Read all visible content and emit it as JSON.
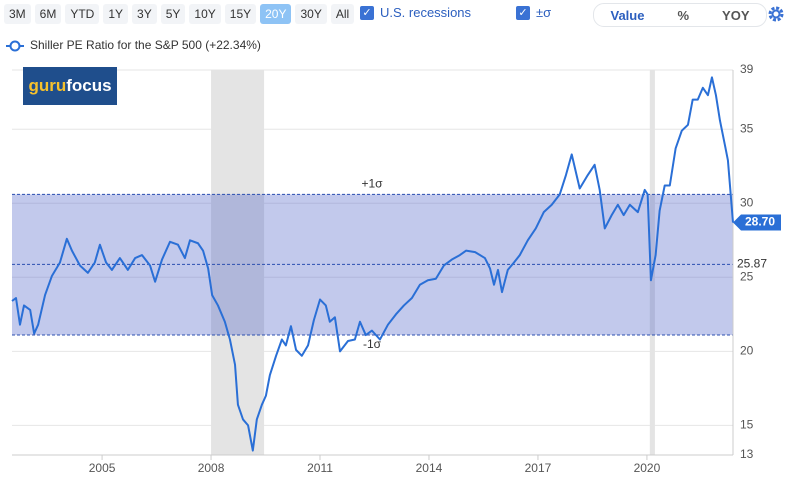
{
  "toolbar": {
    "ranges": [
      "3M",
      "6M",
      "YTD",
      "1Y",
      "3Y",
      "5Y",
      "10Y",
      "15Y",
      "20Y",
      "30Y",
      "All"
    ],
    "active_range": 8,
    "recessions_label": "U.S. recessions",
    "sigma_label": "±σ",
    "modes": [
      "Value",
      "%",
      "YOY"
    ],
    "active_mode": 0
  },
  "logo": {
    "part1": "guru",
    "part2": "focus"
  },
  "chart_data": {
    "type": "line",
    "series": [
      {
        "name": "Shiller PE Ratio for the S&P 500 (+22.34%)",
        "color": "#2a6fd6",
        "values": [
          23.4,
          23.6,
          21.8,
          23.1,
          22.8,
          21.2,
          21.8,
          23.8,
          25.1,
          26.0,
          27.6,
          26.8,
          25.8,
          25.3,
          26.0,
          27.2,
          26.0,
          25.5,
          26.3,
          25.5,
          26.3,
          26.5,
          25.8,
          24.7,
          26.2,
          27.4,
          27.2,
          26.3,
          27.5,
          27.3,
          26.8,
          25.6,
          23.8,
          23.1,
          22.0,
          20.8,
          19.1,
          16.4,
          15.4,
          15.0,
          13.3,
          15.4,
          16.4,
          17.0,
          18.4,
          19.7,
          20.8,
          20.4,
          21.7,
          20.1,
          19.7,
          20.4,
          22.1,
          23.5,
          23.1,
          22.0,
          22.3,
          20.0,
          20.7,
          20.8,
          22.0,
          21.1,
          21.4,
          20.8,
          21.8,
          22.5,
          23.1,
          23.6,
          24.5,
          24.8,
          24.9,
          25.8,
          26.2,
          26.5,
          26.8,
          26.7,
          26.3,
          25.6,
          24.5,
          25.5,
          24.0,
          25.5,
          26.0,
          26.5,
          27.5,
          28.3,
          29.4,
          29.9,
          30.6,
          31.9,
          33.3,
          31.0,
          31.9,
          32.6,
          30.9,
          28.3,
          29.2,
          29.9,
          29.2,
          29.9,
          29.4,
          30.9,
          30.6,
          24.8,
          26.5,
          29.5,
          31.2,
          31.2,
          33.7,
          34.9,
          35.3,
          37.0,
          37.0,
          37.8,
          37.3,
          38.5,
          37.3,
          35.6,
          33.9,
          32.9,
          28.7
        ]
      }
    ],
    "x": [
      2002.52,
      2002.63,
      2002.74,
      2002.85,
      2003.02,
      2003.13,
      2003.24,
      2003.43,
      2003.62,
      2003.84,
      2004.03,
      2004.17,
      2004.39,
      2004.61,
      2004.8,
      2004.94,
      2005.11,
      2005.27,
      2005.49,
      2005.71,
      2005.91,
      2006.1,
      2006.32,
      2006.46,
      2006.65,
      2006.87,
      2007.09,
      2007.28,
      2007.42,
      2007.64,
      2007.78,
      2007.92,
      2008.03,
      2008.19,
      2008.38,
      2008.52,
      2008.66,
      2008.74,
      2008.88,
      2009.02,
      2009.15,
      2009.26,
      2009.4,
      2009.51,
      2009.62,
      2009.79,
      2009.95,
      2010.06,
      2010.2,
      2010.34,
      2010.5,
      2010.67,
      2010.83,
      2011.0,
      2011.16,
      2011.27,
      2011.41,
      2011.55,
      2011.77,
      2011.96,
      2012.1,
      2012.26,
      2012.43,
      2012.65,
      2012.87,
      2013.09,
      2013.31,
      2013.53,
      2013.75,
      2013.97,
      2014.19,
      2014.41,
      2014.63,
      2014.85,
      2015.02,
      2015.27,
      2015.54,
      2015.68,
      2015.79,
      2015.9,
      2016.01,
      2016.17,
      2016.34,
      2016.5,
      2016.72,
      2016.94,
      2017.16,
      2017.38,
      2017.6,
      2017.77,
      2017.93,
      2018.15,
      2018.37,
      2018.56,
      2018.7,
      2018.84,
      2019.03,
      2019.2,
      2019.36,
      2019.53,
      2019.75,
      2019.94,
      2020.02,
      2020.11,
      2020.24,
      2020.35,
      2020.49,
      2020.63,
      2020.79,
      2020.96,
      2021.13,
      2021.26,
      2021.4,
      2021.54,
      2021.68,
      2021.79,
      2021.9,
      2022.01,
      2022.15,
      2022.23,
      2022.37
    ],
    "xlim": [
      2002.52,
      2022.37
    ],
    "xticks": [
      2005,
      2008,
      2011,
      2014,
      2017,
      2020
    ],
    "ylim": [
      13,
      39
    ],
    "yticks": [
      13,
      15,
      20,
      25,
      30,
      35,
      39
    ],
    "grid": true,
    "recessions": [
      [
        2008.0,
        2009.46
      ],
      [
        2020.08,
        2020.22
      ]
    ],
    "mean": 25.87,
    "plus_sigma": {
      "value": 30.6,
      "label": "+1σ"
    },
    "minus_sigma": {
      "value": 21.1,
      "label": "-1σ"
    },
    "current": {
      "value": 28.7,
      "label": "28.70"
    }
  }
}
